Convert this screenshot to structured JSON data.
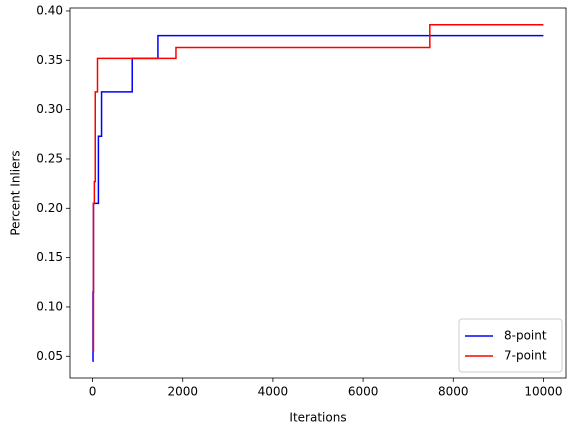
{
  "chart_data": {
    "type": "line",
    "drawstyle": "steps-post",
    "xlabel": "Iterations",
    "ylabel": "Percent Inliers",
    "xlim": [
      -500,
      10500
    ],
    "ylim": [
      0.028,
      0.403
    ],
    "xticks": [
      0,
      2000,
      4000,
      6000,
      8000,
      10000
    ],
    "yticks": [
      0.05,
      {
        "value": 0.1,
        "label": "0.10"
      },
      0.15,
      {
        "value": 0.2,
        "label": "0.20"
      },
      0.25,
      {
        "value": 0.3,
        "label": "0.30"
      },
      0.35,
      {
        "value": 0.4,
        "label": "0.40"
      }
    ],
    "legend": "lower right",
    "series": [
      {
        "name": "8-point",
        "color": "#0000ff",
        "x": [
          0,
          10,
          20,
          130,
          200,
          880,
          1450,
          9999
        ],
        "values": [
          0.045,
          0.115,
          0.205,
          0.273,
          0.318,
          0.352,
          0.375,
          0.375
        ]
      },
      {
        "name": "7-point",
        "color": "#ff0000",
        "x": [
          0,
          20,
          40,
          60,
          110,
          1850,
          7480,
          9999
        ],
        "values": [
          0.055,
          0.205,
          0.227,
          0.318,
          0.352,
          0.363,
          0.386,
          0.386
        ]
      }
    ]
  }
}
